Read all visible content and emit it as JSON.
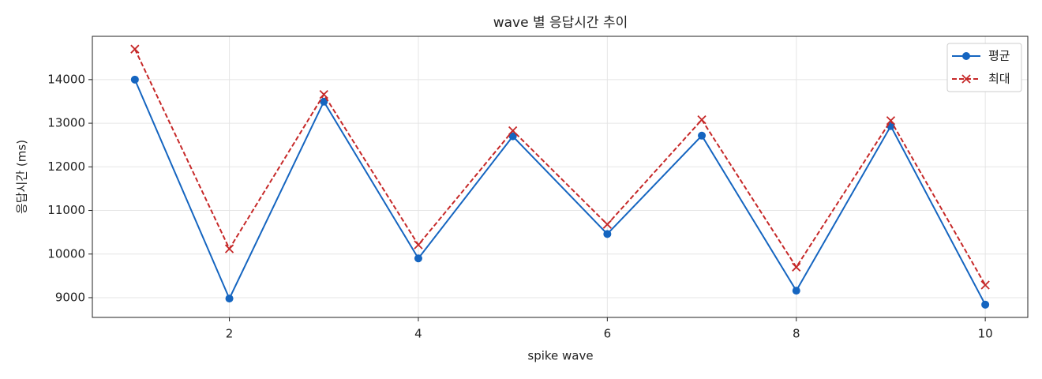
{
  "chart_data": {
    "type": "line",
    "title": "wave 별 응답시간 추이",
    "x_label": "spike wave",
    "y_label": "응답시간 (ms)",
    "x": [
      1,
      2,
      3,
      4,
      5,
      6,
      7,
      8,
      9,
      10
    ],
    "series": [
      {
        "name": "평균",
        "color": "#1565c0",
        "dash": false,
        "marker": "circle",
        "values": [
          14000,
          8980,
          13495,
          9900,
          12700,
          10460,
          12715,
          9160,
          12935,
          8840
        ]
      },
      {
        "name": "최대",
        "color": "#c62828",
        "dash": true,
        "marker": "x",
        "values": [
          14700,
          10120,
          13660,
          10210,
          12830,
          10680,
          13080,
          9700,
          13060,
          9290
        ]
      }
    ],
    "xlim": [
      0.55,
      10.45
    ],
    "ylim": [
      8547,
      14993
    ],
    "xticks": [
      2,
      4,
      6,
      8,
      10
    ],
    "yticks": [
      9000,
      10000,
      11000,
      12000,
      13000,
      14000
    ],
    "grid": true,
    "legend": "upper right"
  }
}
